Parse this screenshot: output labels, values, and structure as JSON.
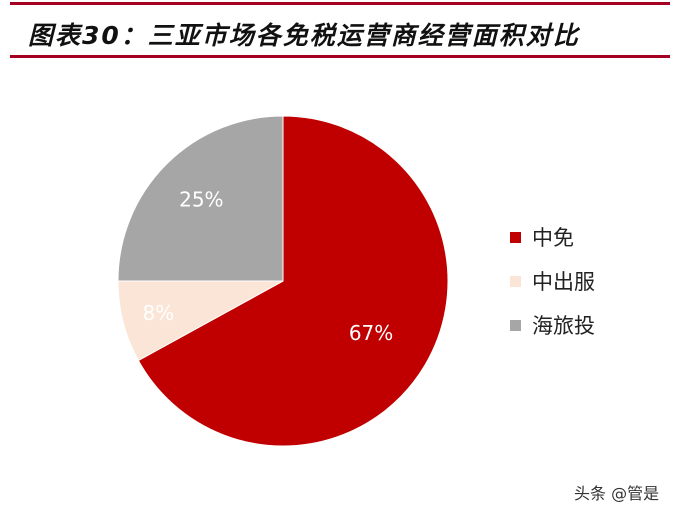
{
  "title": "图表30：三亚市场各免税运营商经营面积对比",
  "watermark": "头条 @管是",
  "chart_data": {
    "type": "pie",
    "title": "图表30：三亚市场各免税运营商经营面积对比",
    "categories": [
      "中免",
      "中出服",
      "海旅投"
    ],
    "values": [
      67,
      8,
      25
    ],
    "labels": [
      "67%",
      "8%",
      "25%"
    ],
    "colors": [
      "#C00000",
      "#FBE5D6",
      "#A6A6A6"
    ],
    "label_colors": [
      "#ffffff",
      "#ffffff",
      "#ffffff"
    ],
    "start": "12 o'clock, clockwise",
    "legend": "right"
  }
}
